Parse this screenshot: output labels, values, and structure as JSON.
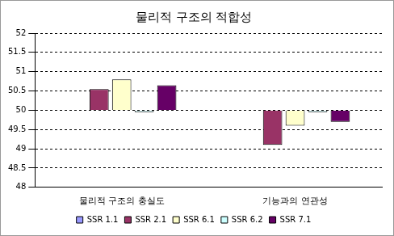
{
  "chart_data": {
    "type": "bar",
    "title": "물리적 구조의 적합성",
    "categories": [
      "물리적 구조의 충실도",
      "기능과의 연관성"
    ],
    "base": 50,
    "series": [
      {
        "name": "SSR 1.1",
        "color": "#9999ff",
        "values": [
          50,
          50
        ]
      },
      {
        "name": "SSR 2.1",
        "color": "#993366",
        "values": [
          50.55,
          49.1
        ]
      },
      {
        "name": "SSR 6.1",
        "color": "#ffffcc",
        "values": [
          50.8,
          49.6
        ]
      },
      {
        "name": "SSR 6.2",
        "color": "#ccffff",
        "values": [
          49.95,
          49.95
        ]
      },
      {
        "name": "SSR 7.1",
        "color": "#660066",
        "values": [
          50.65,
          49.7
        ]
      }
    ],
    "ylim": [
      48,
      52
    ],
    "yticks": [
      48,
      48.5,
      49,
      49.5,
      50,
      50.5,
      51,
      51.5,
      52
    ],
    "grid": true,
    "legend": "bottom"
  }
}
